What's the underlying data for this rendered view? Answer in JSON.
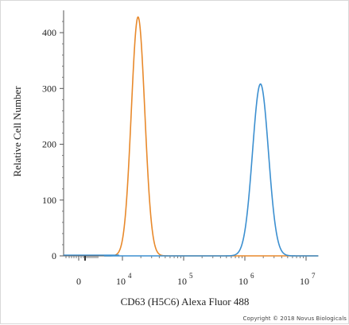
{
  "chart_data": {
    "type": "line",
    "title": "",
    "xlabel": "CD63 (H5C6) Alexa Fluor 488",
    "ylabel": "Relative Cell Number",
    "x_scale": "biexponential",
    "x_ticks": [
      {
        "value": 0,
        "base": "0",
        "exp": ""
      },
      {
        "value": 10000,
        "base": "10",
        "exp": "4"
      },
      {
        "value": 100000,
        "base": "10",
        "exp": "5"
      },
      {
        "value": 1000000,
        "base": "10",
        "exp": "6"
      },
      {
        "value": 10000000,
        "base": "10",
        "exp": "7"
      }
    ],
    "y_ticks": [
      0,
      100,
      200,
      300,
      400
    ],
    "ylim": [
      0,
      440
    ],
    "grid": false,
    "series": [
      {
        "color": "#e8892b",
        "peak_x": 18000,
        "peak_y": 428,
        "width_decades": 0.11,
        "values_description_not_rendered": ""
      },
      {
        "color": "#3b8fd0",
        "peak_x": 1800000,
        "peak_y": 308,
        "width_decades": 0.13
      }
    ]
  },
  "copyright": "Copyright © 2018 Novus Biologicals"
}
